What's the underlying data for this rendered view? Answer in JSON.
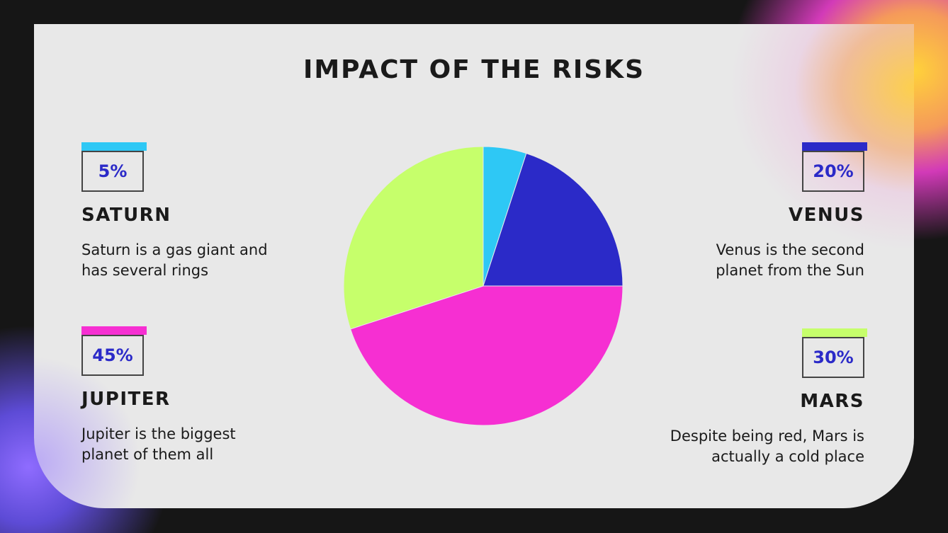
{
  "title": "IMPACT OF THE RISKS",
  "items": [
    {
      "pct": "5%",
      "name": "SATURN",
      "desc": "Saturn is a gas giant and has several rings",
      "color": "#2ec8f5"
    },
    {
      "pct": "20%",
      "name": "VENUS",
      "desc": "Venus is the second planet from the Sun",
      "color": "#2b2ac8"
    },
    {
      "pct": "45%",
      "name": "JUPITER",
      "desc": "Jupiter is the biggest planet of them all",
      "color": "#f62fd2"
    },
    {
      "pct": "30%",
      "name": "MARS",
      "desc": "Despite being red, Mars is actually a cold place",
      "color": "#c6ff6b"
    }
  ],
  "chart_data": {
    "type": "pie",
    "categories": [
      "Saturn",
      "Venus",
      "Jupiter",
      "Mars"
    ],
    "values": [
      5,
      20,
      45,
      30
    ],
    "colors": [
      "#2ec8f5",
      "#2b2ac8",
      "#f62fd2",
      "#c6ff6b"
    ],
    "start": "top",
    "direction": "clockwise"
  }
}
